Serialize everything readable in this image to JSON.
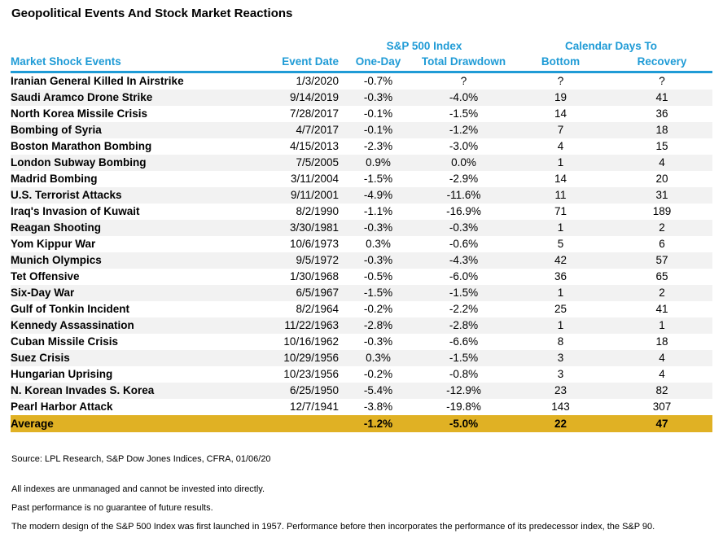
{
  "title": "Geopolitical Events And Stock Market Reactions",
  "colors": {
    "header_blue": "#1F9BD6",
    "row_alt_gray": "#F2F2F2",
    "average_gold": "#E0B124"
  },
  "header": {
    "group_sp500": "S&P 500 Index",
    "group_calendar": "Calendar Days To",
    "col_event": "Market Shock Events",
    "col_date": "Event Date",
    "col_one_day": "One-Day",
    "col_drawdown": "Total Drawdown",
    "col_bottom": "Bottom",
    "col_recovery": "Recovery"
  },
  "chart_data": {
    "type": "table",
    "title": "Geopolitical Events And Stock Market Reactions",
    "columns": [
      "Market Shock Events",
      "Event Date",
      "One-Day",
      "Total Drawdown",
      "Bottom",
      "Recovery"
    ],
    "column_groups": [
      {
        "label": "S&P 500 Index",
        "spans": [
          "One-Day",
          "Total Drawdown"
        ]
      },
      {
        "label": "Calendar Days To",
        "spans": [
          "Bottom",
          "Recovery"
        ]
      }
    ],
    "rows": [
      [
        "Iranian General Killed In Airstrike",
        "1/3/2020",
        "-0.7%",
        "?",
        "?",
        "?"
      ],
      [
        "Saudi Aramco Drone Strike",
        "9/14/2019",
        "-0.3%",
        "-4.0%",
        "19",
        "41"
      ],
      [
        "North Korea Missile Crisis",
        "7/28/2017",
        "-0.1%",
        "-1.5%",
        "14",
        "36"
      ],
      [
        "Bombing of Syria",
        "4/7/2017",
        "-0.1%",
        "-1.2%",
        "7",
        "18"
      ],
      [
        "Boston Marathon Bombing",
        "4/15/2013",
        "-2.3%",
        "-3.0%",
        "4",
        "15"
      ],
      [
        "London Subway Bombing",
        "7/5/2005",
        "0.9%",
        "0.0%",
        "1",
        "4"
      ],
      [
        "Madrid Bombing",
        "3/11/2004",
        "-1.5%",
        "-2.9%",
        "14",
        "20"
      ],
      [
        "U.S. Terrorist Attacks",
        "9/11/2001",
        "-4.9%",
        "-11.6%",
        "11",
        "31"
      ],
      [
        "Iraq's Invasion of Kuwait",
        "8/2/1990",
        "-1.1%",
        "-16.9%",
        "71",
        "189"
      ],
      [
        "Reagan Shooting",
        "3/30/1981",
        "-0.3%",
        "-0.3%",
        "1",
        "2"
      ],
      [
        "Yom Kippur War",
        "10/6/1973",
        "0.3%",
        "-0.6%",
        "5",
        "6"
      ],
      [
        "Munich Olympics",
        "9/5/1972",
        "-0.3%",
        "-4.3%",
        "42",
        "57"
      ],
      [
        "Tet Offensive",
        "1/30/1968",
        "-0.5%",
        "-6.0%",
        "36",
        "65"
      ],
      [
        "Six-Day War",
        "6/5/1967",
        "-1.5%",
        "-1.5%",
        "1",
        "2"
      ],
      [
        "Gulf of Tonkin Incident",
        "8/2/1964",
        "-0.2%",
        "-2.2%",
        "25",
        "41"
      ],
      [
        "Kennedy Assassination",
        "11/22/1963",
        "-2.8%",
        "-2.8%",
        "1",
        "1"
      ],
      [
        "Cuban Missile Crisis",
        "10/16/1962",
        "-0.3%",
        "-6.6%",
        "8",
        "18"
      ],
      [
        "Suez Crisis",
        "10/29/1956",
        "0.3%",
        "-1.5%",
        "3",
        "4"
      ],
      [
        "Hungarian Uprising",
        "10/23/1956",
        "-0.2%",
        "-0.8%",
        "3",
        "4"
      ],
      [
        "N. Korean Invades S. Korea",
        "6/25/1950",
        "-5.4%",
        "-12.9%",
        "23",
        "82"
      ],
      [
        "Pearl Harbor Attack",
        "12/7/1941",
        "-3.8%",
        "-19.8%",
        "143",
        "307"
      ]
    ],
    "average_row": [
      "Average",
      "",
      "-1.2%",
      "-5.0%",
      "22",
      "47"
    ]
  },
  "footer": {
    "source": "Source: LPL Research, S&P Dow Jones Indices, CFRA, 01/06/20",
    "notes": [
      "All indexes are unmanaged and cannot be invested into directly.",
      "Past performance is no guarantee of future results.",
      "The modern design of the S&P 500 Index was first launched in 1957. Performance before then incorporates the performance of its predecessor index, the S&P 90."
    ]
  }
}
